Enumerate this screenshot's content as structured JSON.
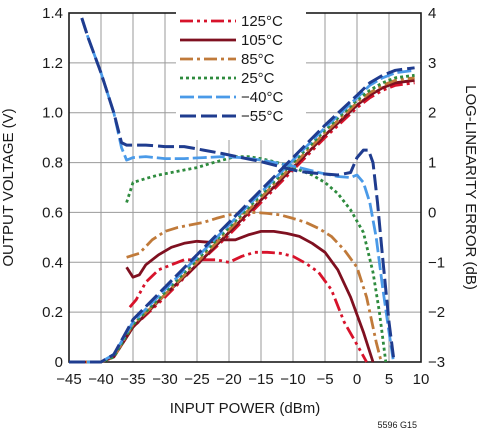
{
  "chart_data": {
    "type": "line",
    "xlabel": "INPUT POWER (dBm)",
    "ylabel_left": "OUTPUT VOLTAGE (V)",
    "ylabel_right": "LOG-LINEARITY ERROR (dB)",
    "figure_id": "5596 G15",
    "xlim": [
      -45,
      10
    ],
    "ylim_left": [
      0,
      1.4
    ],
    "ylim_right": [
      -3,
      4
    ],
    "xticks": [
      -45,
      -40,
      -35,
      -30,
      -25,
      -20,
      -15,
      -10,
      -5,
      0,
      5,
      10
    ],
    "xtick_labels": [
      "−45",
      "−40",
      "−35",
      "−30",
      "−25",
      "−20",
      "−15",
      "−10",
      "−5",
      "0",
      "5",
      "10"
    ],
    "yticks_left": [
      0,
      0.2,
      0.4,
      0.6,
      0.8,
      1.0,
      1.2,
      1.4
    ],
    "ytick_left_labels": [
      "0",
      "0.2",
      "0.4",
      "0.6",
      "0.8",
      "1.0",
      "1.2",
      "1.4"
    ],
    "yticks_right": [
      -3,
      -2,
      -1,
      0,
      1,
      2,
      3,
      4
    ],
    "ytick_right_labels": [
      "−3",
      "−2",
      "−1",
      "0",
      "1",
      "2",
      "3",
      "4"
    ],
    "grid": true,
    "legend_position": "top-center",
    "series": [
      {
        "name": "125°C",
        "color": "#d7132b",
        "dash": "13,4,3,4,3,4",
        "width": 2.8,
        "output_voltage": [
          [
            -45,
            0
          ],
          [
            -40,
            0
          ],
          [
            -38,
            0.02
          ],
          [
            -35,
            0.14
          ],
          [
            -30,
            0.26
          ],
          [
            -25,
            0.39
          ],
          [
            -20,
            0.51
          ],
          [
            -15,
            0.64
          ],
          [
            -10,
            0.77
          ],
          [
            -5,
            0.9
          ],
          [
            0,
            1.02
          ],
          [
            2,
            1.06
          ],
          [
            4,
            1.09
          ],
          [
            6,
            1.11
          ],
          [
            9,
            1.12
          ]
        ],
        "log_linearity_error": [
          [
            -35.5,
            -1.9
          ],
          [
            -34.5,
            -1.75
          ],
          [
            -33,
            -1.4
          ],
          [
            -31,
            -1.15
          ],
          [
            -29,
            -1.05
          ],
          [
            -27,
            -0.95
          ],
          [
            -25,
            -0.95
          ],
          [
            -22,
            -0.95
          ],
          [
            -20,
            -1.0
          ],
          [
            -18,
            -0.88
          ],
          [
            -16,
            -0.8
          ],
          [
            -14,
            -0.8
          ],
          [
            -12,
            -0.82
          ],
          [
            -10,
            -0.88
          ],
          [
            -8,
            -1.02
          ],
          [
            -6,
            -1.2
          ],
          [
            -4,
            -1.55
          ],
          [
            -2,
            -2.2
          ],
          [
            0,
            -2.65
          ],
          [
            1.5,
            -3.0
          ]
        ]
      },
      {
        "name": "105°C",
        "color": "#7f1020",
        "dash": "",
        "width": 2.8,
        "output_voltage": [
          [
            -45,
            0
          ],
          [
            -40,
            0
          ],
          [
            -38,
            0.02
          ],
          [
            -35,
            0.14
          ],
          [
            -30,
            0.27
          ],
          [
            -25,
            0.39
          ],
          [
            -20,
            0.52
          ],
          [
            -15,
            0.65
          ],
          [
            -10,
            0.78
          ],
          [
            -5,
            0.91
          ],
          [
            0,
            1.03
          ],
          [
            2,
            1.07
          ],
          [
            4,
            1.1
          ],
          [
            6,
            1.12
          ],
          [
            9,
            1.13
          ]
        ],
        "log_linearity_error": [
          [
            -36,
            -1.1
          ],
          [
            -35,
            -1.3
          ],
          [
            -34,
            -1.25
          ],
          [
            -33,
            -1.05
          ],
          [
            -31,
            -0.85
          ],
          [
            -29,
            -0.7
          ],
          [
            -27,
            -0.62
          ],
          [
            -25,
            -0.58
          ],
          [
            -23,
            -0.6
          ],
          [
            -21,
            -0.55
          ],
          [
            -19,
            -0.55
          ],
          [
            -17,
            -0.45
          ],
          [
            -15,
            -0.38
          ],
          [
            -13,
            -0.38
          ],
          [
            -11,
            -0.42
          ],
          [
            -9,
            -0.48
          ],
          [
            -7,
            -0.62
          ],
          [
            -5,
            -0.8
          ],
          [
            -3,
            -1.15
          ],
          [
            -1,
            -1.7
          ],
          [
            1,
            -2.4
          ],
          [
            2.5,
            -3.0
          ]
        ]
      },
      {
        "name": "85°C",
        "color": "#c07a3a",
        "dash": "13,4,3,4",
        "width": 2.8,
        "output_voltage": [
          [
            -45,
            0
          ],
          [
            -40,
            0
          ],
          [
            -38,
            0.02
          ],
          [
            -35,
            0.15
          ],
          [
            -30,
            0.27
          ],
          [
            -25,
            0.4
          ],
          [
            -20,
            0.53
          ],
          [
            -15,
            0.66
          ],
          [
            -10,
            0.79
          ],
          [
            -5,
            0.92
          ],
          [
            0,
            1.04
          ],
          [
            2,
            1.08
          ],
          [
            4,
            1.11
          ],
          [
            6,
            1.13
          ],
          [
            9,
            1.14
          ]
        ],
        "log_linearity_error": [
          [
            -36,
            -0.9
          ],
          [
            -34,
            -0.82
          ],
          [
            -32,
            -0.55
          ],
          [
            -30,
            -0.38
          ],
          [
            -28,
            -0.3
          ],
          [
            -26,
            -0.25
          ],
          [
            -24,
            -0.2
          ],
          [
            -22,
            -0.12
          ],
          [
            -20,
            -0.05
          ],
          [
            -18,
            -0.02
          ],
          [
            -16,
            0.0
          ],
          [
            -14,
            -0.02
          ],
          [
            -12,
            -0.05
          ],
          [
            -10,
            -0.12
          ],
          [
            -8,
            -0.2
          ],
          [
            -6,
            -0.32
          ],
          [
            -4,
            -0.48
          ],
          [
            -2,
            -0.75
          ],
          [
            0,
            -1.1
          ],
          [
            1.5,
            -1.7
          ],
          [
            3,
            -2.6
          ],
          [
            3.8,
            -3.0
          ]
        ]
      },
      {
        "name": "25°C",
        "color": "#2e8b3e",
        "dash": "3,3",
        "width": 2.8,
        "output_voltage": [
          [
            -45,
            0
          ],
          [
            -40,
            0
          ],
          [
            -38,
            0.02
          ],
          [
            -35,
            0.15
          ],
          [
            -30,
            0.28
          ],
          [
            -25,
            0.41
          ],
          [
            -20,
            0.54
          ],
          [
            -15,
            0.67
          ],
          [
            -10,
            0.8
          ],
          [
            -5,
            0.93
          ],
          [
            0,
            1.05
          ],
          [
            2,
            1.09
          ],
          [
            4,
            1.12
          ],
          [
            6,
            1.14
          ],
          [
            9,
            1.15
          ]
        ],
        "log_linearity_error": [
          [
            -36,
            0.2
          ],
          [
            -35,
            0.6
          ],
          [
            -33,
            0.68
          ],
          [
            -31,
            0.75
          ],
          [
            -29,
            0.8
          ],
          [
            -27,
            0.85
          ],
          [
            -25,
            0.9
          ],
          [
            -23,
            0.98
          ],
          [
            -21,
            1.05
          ],
          [
            -19,
            1.12
          ],
          [
            -17,
            1.12
          ],
          [
            -15,
            1.08
          ],
          [
            -13,
            1.02
          ],
          [
            -11,
            0.95
          ],
          [
            -9,
            0.85
          ],
          [
            -7,
            0.75
          ],
          [
            -5,
            0.6
          ],
          [
            -3,
            0.38
          ],
          [
            -1,
            0.05
          ],
          [
            1,
            -0.4
          ],
          [
            2.5,
            -1.2
          ],
          [
            3.5,
            -2.0
          ],
          [
            4.5,
            -3.0
          ]
        ]
      },
      {
        "name": "−40°C",
        "color": "#4a9ae8",
        "dash": "14,4",
        "width": 2.8,
        "output_voltage": [
          [
            -45,
            0
          ],
          [
            -40,
            0
          ],
          [
            -38,
            0.03
          ],
          [
            -35,
            0.16
          ],
          [
            -30,
            0.29
          ],
          [
            -25,
            0.42
          ],
          [
            -20,
            0.55
          ],
          [
            -15,
            0.68
          ],
          [
            -10,
            0.81
          ],
          [
            -5,
            0.94
          ],
          [
            0,
            1.06
          ],
          [
            2,
            1.11
          ],
          [
            4,
            1.14
          ],
          [
            6,
            1.16
          ],
          [
            9,
            1.17
          ]
        ],
        "log_linearity_error": [
          [
            -43,
            3.9
          ],
          [
            -42,
            3.5
          ],
          [
            -40,
            2.8
          ],
          [
            -38,
            2.0
          ],
          [
            -36.8,
            1.3
          ],
          [
            -36,
            1.05
          ],
          [
            -35,
            1.1
          ],
          [
            -33,
            1.12
          ],
          [
            -30,
            1.08
          ],
          [
            -27,
            1.08
          ],
          [
            -24,
            1.1
          ],
          [
            -21,
            1.12
          ],
          [
            -18,
            1.1
          ],
          [
            -15,
            1.05
          ],
          [
            -12,
            0.98
          ],
          [
            -9,
            0.9
          ],
          [
            -6,
            0.8
          ],
          [
            -3,
            0.72
          ],
          [
            -1,
            0.7
          ],
          [
            0,
            0.75
          ],
          [
            1,
            0.6
          ],
          [
            2,
            0.2
          ],
          [
            3,
            -0.5
          ],
          [
            4,
            -1.5
          ],
          [
            5,
            -2.4
          ],
          [
            5.7,
            -3.0
          ]
        ]
      },
      {
        "name": "−55°C",
        "color": "#1f3c8f",
        "dash": "16,5",
        "width": 3,
        "output_voltage": [
          [
            -45,
            0
          ],
          [
            -40,
            0
          ],
          [
            -38,
            0.03
          ],
          [
            -35,
            0.17
          ],
          [
            -30,
            0.3
          ],
          [
            -25,
            0.43
          ],
          [
            -20,
            0.56
          ],
          [
            -15,
            0.69
          ],
          [
            -10,
            0.82
          ],
          [
            -5,
            0.95
          ],
          [
            0,
            1.07
          ],
          [
            2,
            1.12
          ],
          [
            4,
            1.15
          ],
          [
            6,
            1.17
          ],
          [
            9,
            1.18
          ]
        ],
        "log_linearity_error": [
          [
            -43,
            3.9
          ],
          [
            -42,
            3.5
          ],
          [
            -40,
            2.8
          ],
          [
            -38,
            2.0
          ],
          [
            -36.8,
            1.4
          ],
          [
            -36,
            1.35
          ],
          [
            -33,
            1.35
          ],
          [
            -30,
            1.32
          ],
          [
            -27,
            1.32
          ],
          [
            -24,
            1.25
          ],
          [
            -21,
            1.18
          ],
          [
            -18,
            1.1
          ],
          [
            -15,
            1.02
          ],
          [
            -12,
            0.92
          ],
          [
            -9,
            0.82
          ],
          [
            -6,
            0.78
          ],
          [
            -3,
            0.75
          ],
          [
            -1,
            0.8
          ],
          [
            0,
            1.1
          ],
          [
            1,
            1.25
          ],
          [
            1.8,
            1.25
          ],
          [
            2.5,
            1.0
          ],
          [
            3.2,
            0.2
          ],
          [
            4,
            -0.9
          ],
          [
            5,
            -2.2
          ],
          [
            5.8,
            -3.0
          ]
        ]
      }
    ]
  }
}
